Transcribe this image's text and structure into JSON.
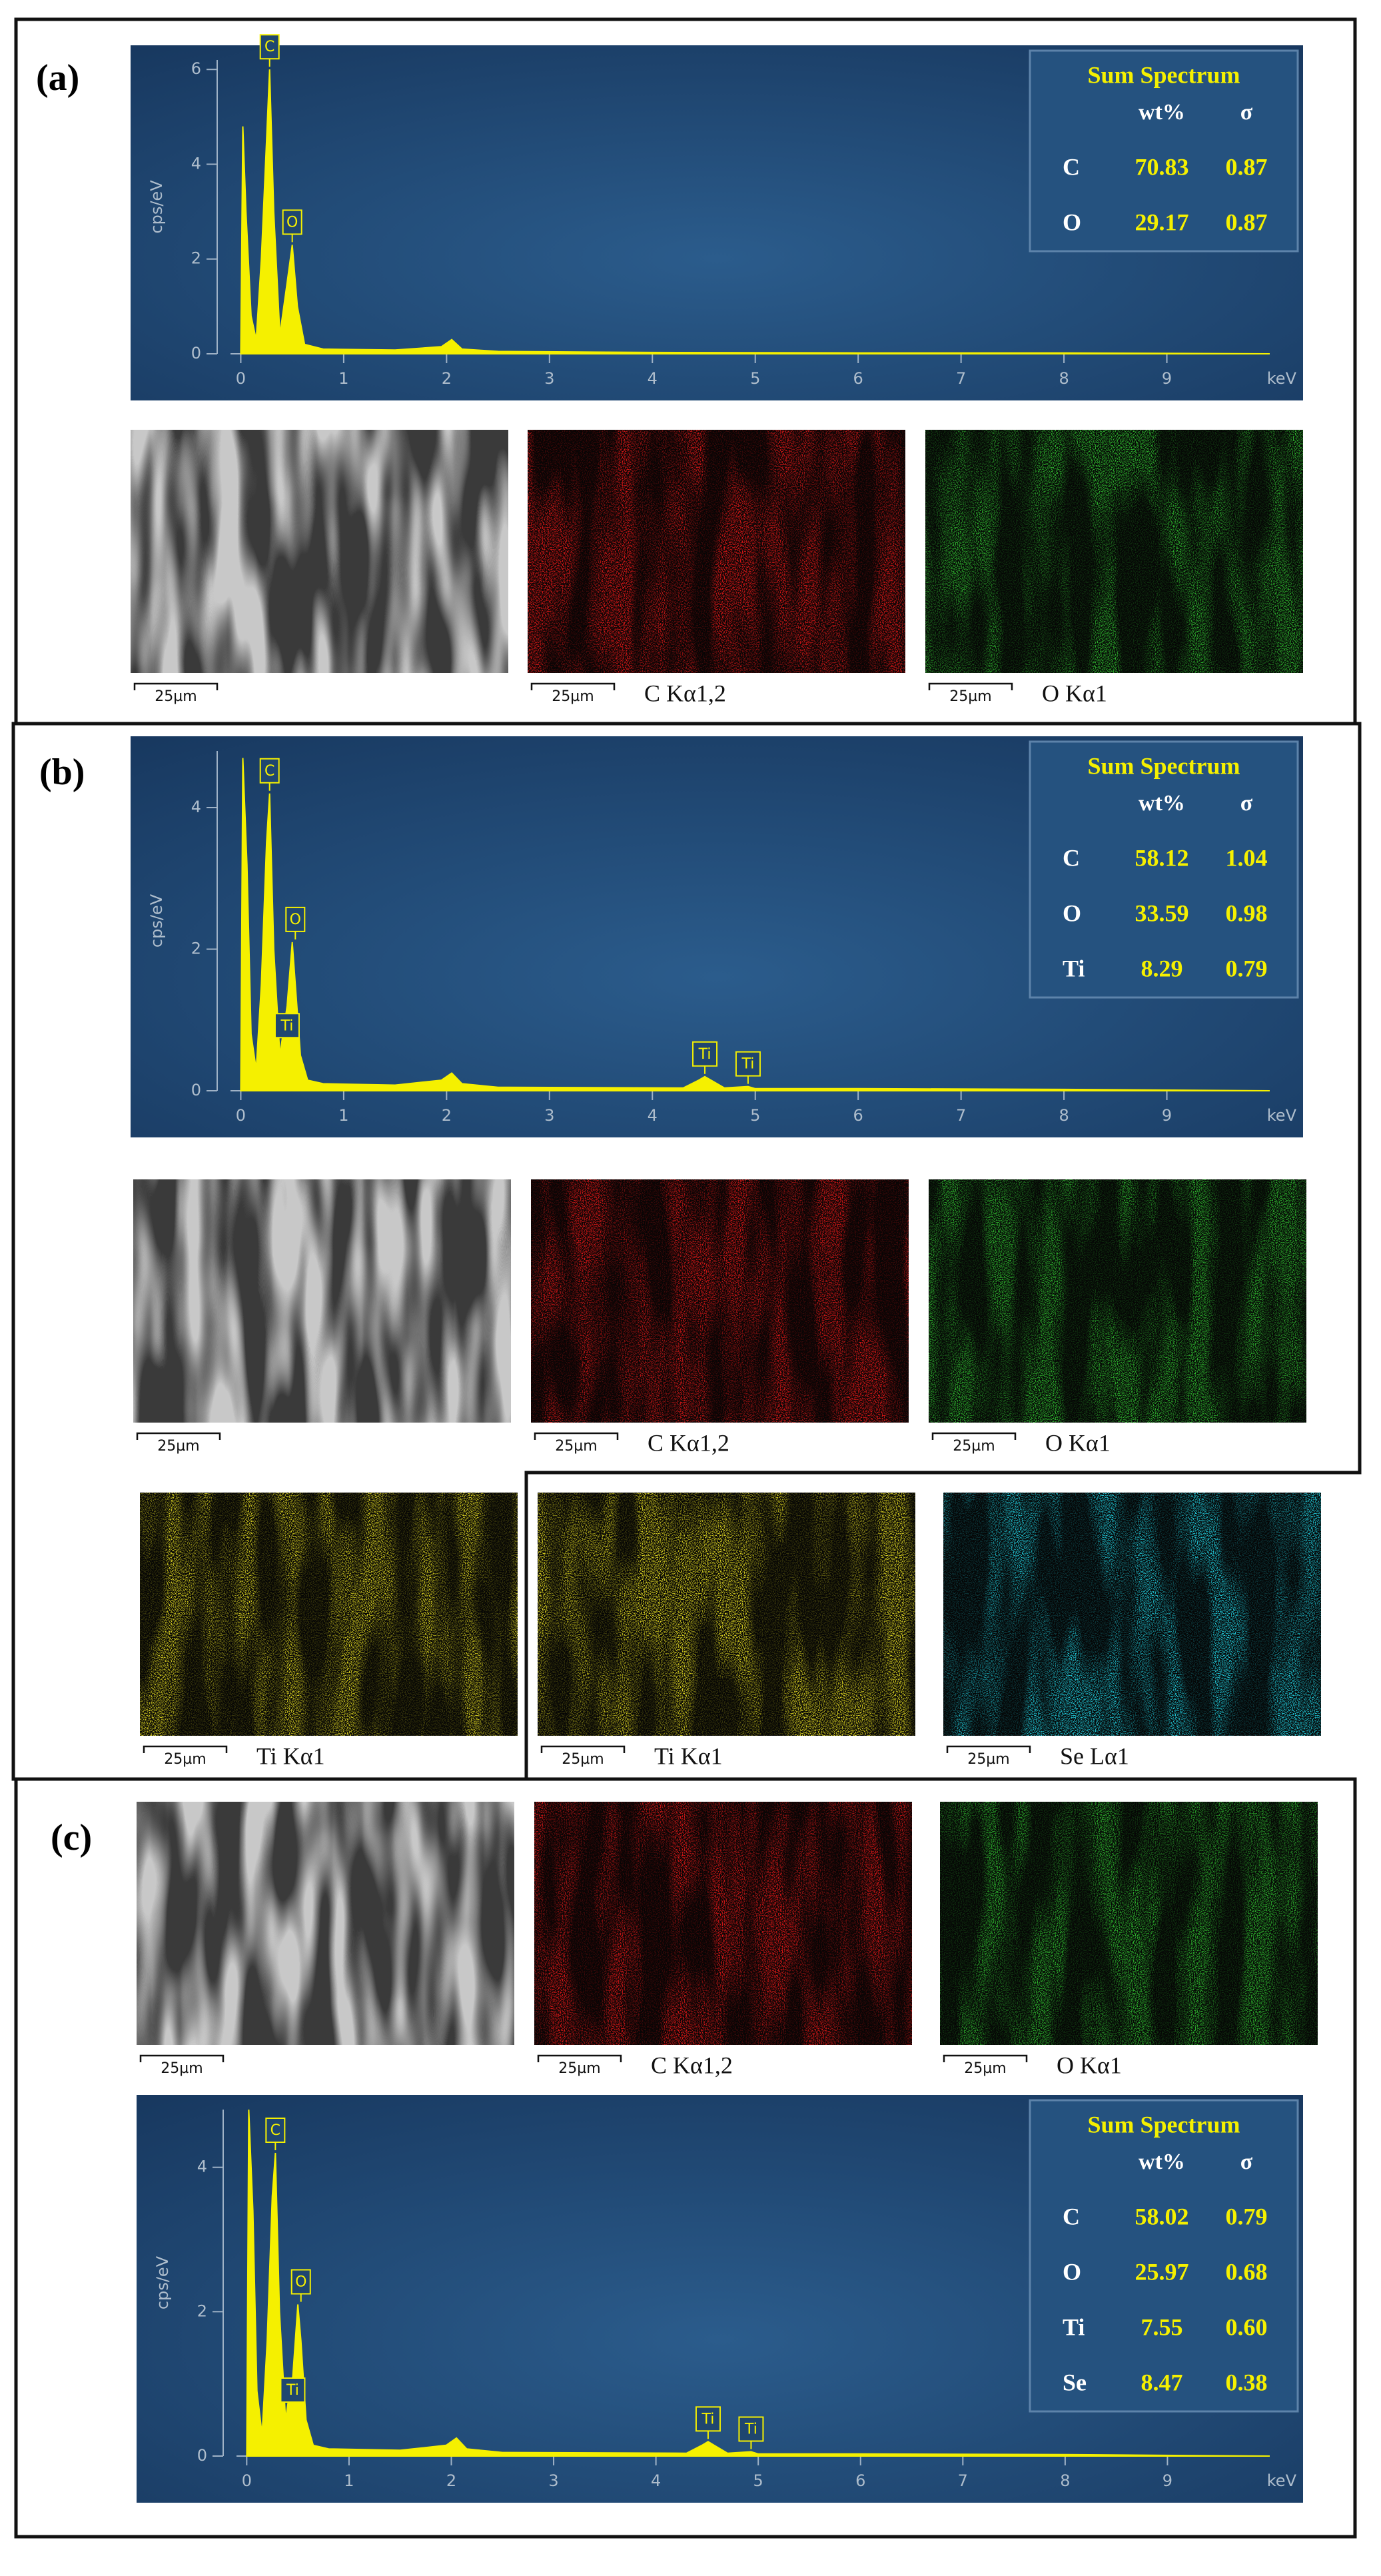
{
  "panels": [
    {
      "label": "(a)",
      "spectrum": {
        "type": "area",
        "ylabel": "cps/eV",
        "xlabel": "keV",
        "color": "#f5f000",
        "xlim": [
          -0.1,
          10
        ],
        "xticks": [
          0,
          1,
          2,
          3,
          4,
          5,
          6,
          7,
          8,
          9
        ],
        "ylim": [
          0,
          6.2
        ],
        "yticks": [
          0,
          2,
          4,
          6
        ],
        "x": [
          0,
          0.02,
          0.05,
          0.1,
          0.15,
          0.2,
          0.25,
          0.28,
          0.32,
          0.38,
          0.45,
          0.5,
          0.55,
          0.62,
          0.8,
          1.5,
          1.95,
          2.05,
          2.15,
          2.5,
          4,
          6,
          8,
          10
        ],
        "y": [
          0,
          4.8,
          3,
          0.8,
          0.3,
          2,
          4.5,
          6,
          3,
          0.4,
          1.5,
          2.3,
          1,
          0.2,
          0.1,
          0.08,
          0.15,
          0.3,
          0.1,
          0.05,
          0.03,
          0.02,
          0.02,
          0
        ],
        "peak_labels": [
          {
            "text": "C",
            "x": 0.28,
            "y": 6
          },
          {
            "text": "O",
            "x": 0.5,
            "y": 2.3
          }
        ],
        "table": {
          "title": "Sum Spectrum",
          "columns": [
            "wt%",
            "σ"
          ],
          "rows": [
            [
              "C",
              "70.83",
              "0.87"
            ],
            [
              "O",
              "29.17",
              "0.87"
            ]
          ]
        }
      },
      "images": [
        {
          "scale": "25µm",
          "color": "#c8c8c8"
        },
        {
          "scale": "25µm",
          "caption": "C Kα1,2",
          "color": "#e01818"
        },
        {
          "scale": "25µm",
          "caption": "O Kα1",
          "color": "#2fb82f"
        }
      ]
    },
    {
      "label": "(b)",
      "spectrum": {
        "type": "area",
        "ylabel": "cps/eV",
        "xlabel": "keV",
        "color": "#f5f000",
        "xlim": [
          -0.1,
          10
        ],
        "xticks": [
          0,
          1,
          2,
          3,
          4,
          5,
          6,
          7,
          8,
          9
        ],
        "ylim": [
          0,
          4.8
        ],
        "yticks": [
          0,
          2,
          4
        ],
        "x": [
          0,
          0.02,
          0.06,
          0.1,
          0.15,
          0.2,
          0.25,
          0.28,
          0.32,
          0.38,
          0.42,
          0.45,
          0.5,
          0.53,
          0.58,
          0.65,
          0.8,
          1.5,
          1.95,
          2.05,
          2.15,
          2.5,
          4.3,
          4.45,
          4.51,
          4.57,
          4.7,
          4.93,
          5,
          5.1,
          6,
          8,
          10
        ],
        "y": [
          0,
          4.7,
          3.2,
          0.8,
          0.3,
          1.5,
          3.5,
          4.2,
          2,
          0.5,
          0.9,
          1.2,
          2.1,
          1.5,
          0.5,
          0.15,
          0.1,
          0.08,
          0.15,
          0.25,
          0.1,
          0.05,
          0.04,
          0.15,
          0.2,
          0.15,
          0.04,
          0.06,
          0.03,
          0.03,
          0.03,
          0.02,
          0
        ],
        "peak_labels": [
          {
            "text": "C",
            "x": 0.28,
            "y": 4.2
          },
          {
            "text": "O",
            "x": 0.53,
            "y": 2.1
          },
          {
            "text": "Ti",
            "x": 0.45,
            "y": 0.6
          },
          {
            "text": "Ti",
            "x": 4.51,
            "y": 0.2
          },
          {
            "text": "Ti",
            "x": 4.93,
            "y": 0.06
          }
        ],
        "table": {
          "title": "Sum Spectrum",
          "columns": [
            "wt%",
            "σ"
          ],
          "rows": [
            [
              "C",
              "58.12",
              "1.04"
            ],
            [
              "O",
              "33.59",
              "0.98"
            ],
            [
              "Ti",
              "8.29",
              "0.79"
            ]
          ]
        }
      },
      "images": [
        {
          "scale": "25µm",
          "color": "#c8c8c8"
        },
        {
          "scale": "25µm",
          "caption": "C Kα1,2",
          "color": "#e01818"
        },
        {
          "scale": "25µm",
          "caption": "O Kα1",
          "color": "#2fb82f"
        },
        {
          "scale": "25µm",
          "caption": "Ti Kα1",
          "color": "#d8d020"
        },
        {
          "scale": "25µm",
          "caption": "Ti Kα1",
          "color": "#d8d020"
        },
        {
          "scale": "25µm",
          "caption": "Se Lα1",
          "color": "#20c8d8"
        }
      ]
    },
    {
      "label": "(c)",
      "spectrum": {
        "type": "area",
        "ylabel": "cps/eV",
        "xlabel": "keV",
        "color": "#f5f000",
        "xlim": [
          -0.1,
          10
        ],
        "xticks": [
          0,
          1,
          2,
          3,
          4,
          5,
          6,
          7,
          8,
          9
        ],
        "ylim": [
          0,
          4.8
        ],
        "yticks": [
          0,
          2,
          4
        ],
        "x": [
          0,
          0.02,
          0.06,
          0.1,
          0.15,
          0.2,
          0.25,
          0.28,
          0.32,
          0.38,
          0.42,
          0.45,
          0.5,
          0.53,
          0.58,
          0.65,
          0.8,
          1.5,
          1.95,
          2.05,
          2.15,
          2.5,
          4.3,
          4.45,
          4.51,
          4.57,
          4.7,
          4.93,
          5,
          5.1,
          6,
          8,
          10
        ],
        "y": [
          0,
          4.8,
          3.4,
          0.9,
          0.3,
          1.6,
          3.6,
          4.2,
          2,
          0.5,
          0.9,
          1.1,
          2.1,
          1.6,
          0.5,
          0.15,
          0.1,
          0.08,
          0.15,
          0.25,
          0.1,
          0.05,
          0.04,
          0.15,
          0.2,
          0.15,
          0.04,
          0.06,
          0.03,
          0.03,
          0.03,
          0.02,
          0
        ],
        "peak_labels": [
          {
            "text": "C",
            "x": 0.28,
            "y": 4.2
          },
          {
            "text": "O",
            "x": 0.53,
            "y": 2.1
          },
          {
            "text": "Ti",
            "x": 0.45,
            "y": 0.6
          },
          {
            "text": "Ti",
            "x": 4.51,
            "y": 0.2
          },
          {
            "text": "Ti",
            "x": 4.93,
            "y": 0.06
          }
        ],
        "table": {
          "title": "Sum Spectrum",
          "columns": [
            "wt%",
            "σ"
          ],
          "rows": [
            [
              "C",
              "58.02",
              "0.79"
            ],
            [
              "O",
              "25.97",
              "0.68"
            ],
            [
              "Ti",
              "7.55",
              "0.60"
            ],
            [
              "Se",
              "8.47",
              "0.38"
            ]
          ]
        }
      },
      "images": [
        {
          "scale": "25µm",
          "color": "#c8c8c8"
        },
        {
          "scale": "25µm",
          "caption": "C Kα1,2",
          "color": "#e01818"
        },
        {
          "scale": "25µm",
          "caption": "O Kα1",
          "color": "#2fb82f"
        }
      ]
    }
  ]
}
